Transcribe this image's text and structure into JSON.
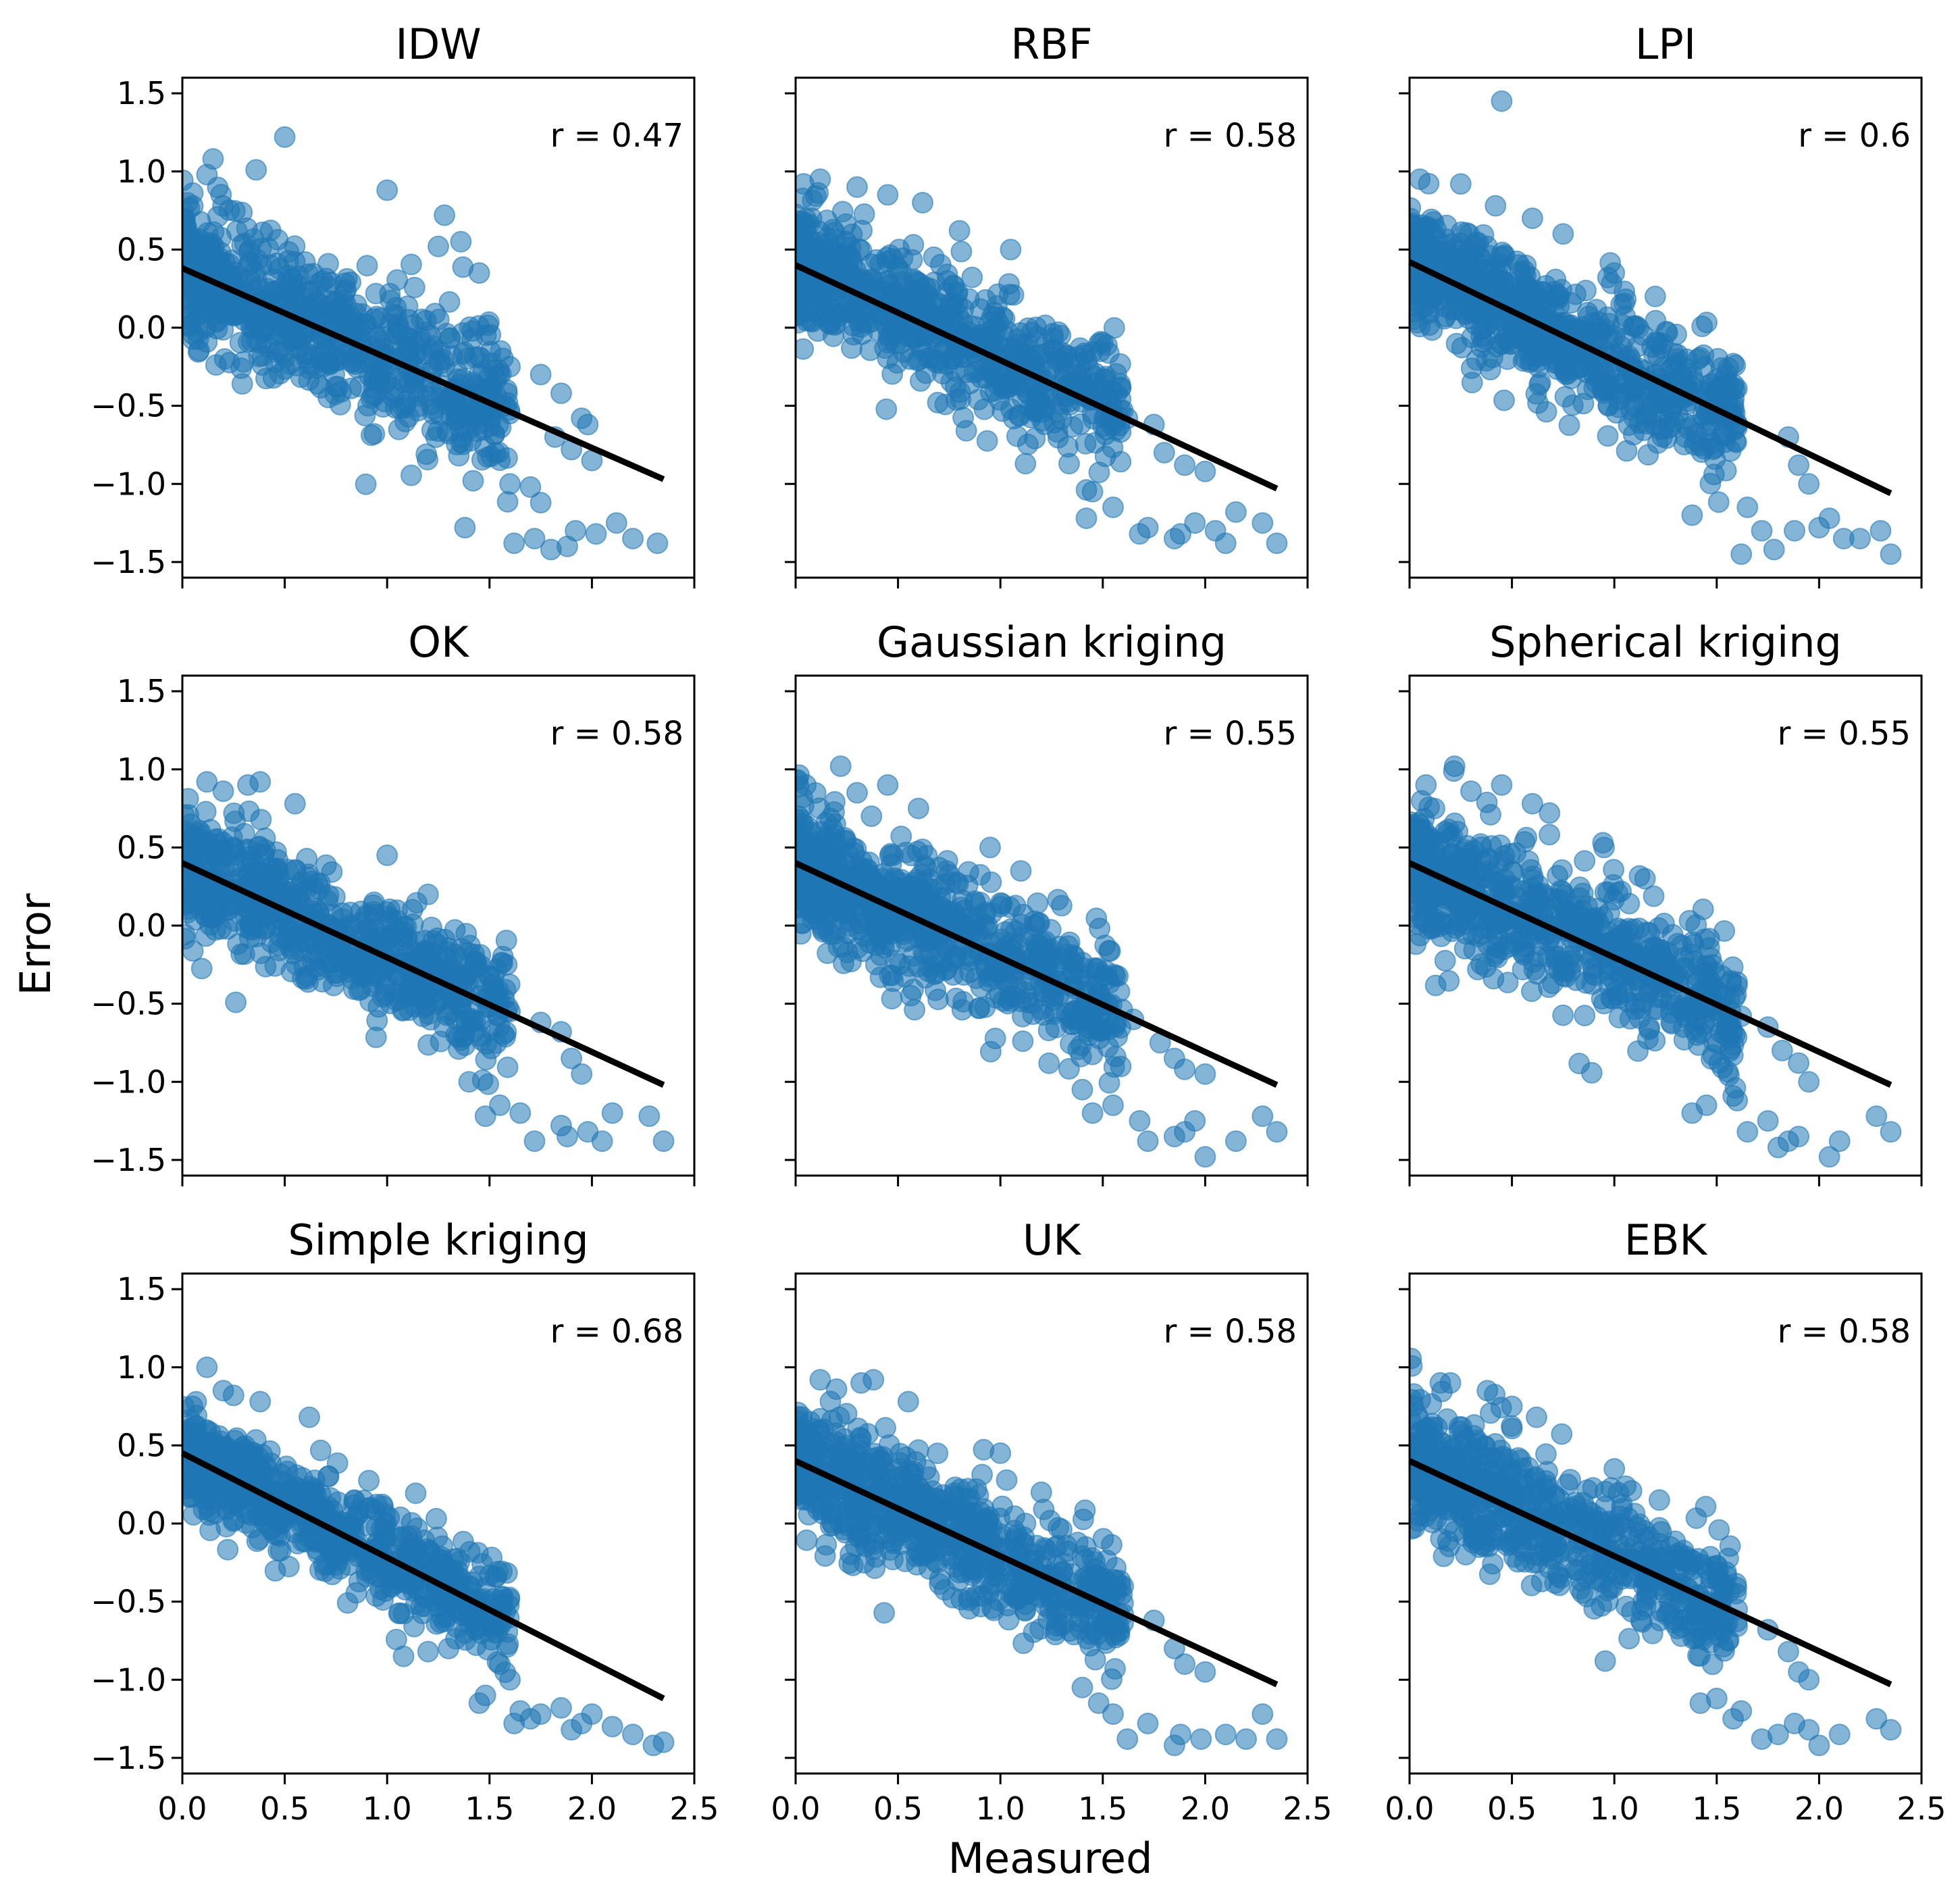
{
  "figure": {
    "xlabel": "Measured",
    "ylabel": "Error",
    "colors": {
      "points": "#1f77b4",
      "fit_line": "#000000",
      "frame": "#000000"
    },
    "xticks": [
      "0.0",
      "0.5",
      "1.0",
      "1.5",
      "2.0",
      "2.5"
    ],
    "yticks": [
      "1.5",
      "1.0",
      "0.5",
      "0.0",
      "−0.5",
      "−1.0",
      "−1.5"
    ]
  },
  "chart_data": [
    {
      "type": "scatter",
      "title": "IDW",
      "r_label": "r = 0.47",
      "xlim": [
        0,
        2.5
      ],
      "ylim": [
        -1.6,
        1.6
      ],
      "fit": {
        "x": [
          0,
          2.35
        ],
        "y": [
          0.38,
          -0.97
        ]
      },
      "n_points": 700,
      "spread": 0.23,
      "seed": 11,
      "outliers": [
        [
          0.5,
          1.22
        ],
        [
          0.15,
          1.08
        ],
        [
          0.36,
          1.01
        ],
        [
          0.12,
          0.98
        ],
        [
          1.0,
          0.88
        ],
        [
          1.28,
          0.72
        ],
        [
          1.36,
          0.55
        ],
        [
          1.25,
          0.52
        ],
        [
          1.45,
          0.35
        ],
        [
          1.6,
          -0.25
        ],
        [
          1.75,
          -0.3
        ],
        [
          1.85,
          -0.42
        ],
        [
          1.95,
          -0.58
        ],
        [
          1.98,
          -0.62
        ],
        [
          1.82,
          -0.7
        ],
        [
          1.9,
          -0.78
        ],
        [
          2.0,
          -0.85
        ],
        [
          1.35,
          -0.82
        ],
        [
          1.42,
          -0.98
        ],
        [
          1.6,
          -1.0
        ],
        [
          1.7,
          -1.02
        ],
        [
          1.75,
          -1.12
        ],
        [
          1.38,
          -1.28
        ],
        [
          1.62,
          -1.38
        ],
        [
          1.72,
          -1.35
        ],
        [
          1.8,
          -1.42
        ],
        [
          1.88,
          -1.4
        ],
        [
          1.92,
          -1.3
        ],
        [
          2.02,
          -1.32
        ],
        [
          2.12,
          -1.25
        ],
        [
          2.2,
          -1.35
        ],
        [
          2.32,
          -1.38
        ]
      ]
    },
    {
      "type": "scatter",
      "title": "RBF",
      "r_label": "r = 0.58",
      "xlim": [
        0,
        2.5
      ],
      "ylim": [
        -1.6,
        1.6
      ],
      "fit": {
        "x": [
          0,
          2.35
        ],
        "y": [
          0.4,
          -1.03
        ]
      },
      "n_points": 700,
      "spread": 0.2,
      "seed": 23,
      "outliers": [
        [
          0.12,
          0.95
        ],
        [
          0.3,
          0.9
        ],
        [
          0.45,
          0.85
        ],
        [
          0.62,
          0.8
        ],
        [
          0.8,
          0.62
        ],
        [
          1.05,
          0.5
        ],
        [
          1.45,
          -0.55
        ],
        [
          1.62,
          -0.58
        ],
        [
          1.75,
          -0.62
        ],
        [
          1.8,
          -0.8
        ],
        [
          1.9,
          -0.88
        ],
        [
          2.0,
          -0.92
        ],
        [
          1.45,
          -1.05
        ],
        [
          1.55,
          -1.15
        ],
        [
          1.42,
          -1.22
        ],
        [
          1.72,
          -1.28
        ],
        [
          1.68,
          -1.32
        ],
        [
          1.85,
          -1.35
        ],
        [
          1.88,
          -1.32
        ],
        [
          1.95,
          -1.25
        ],
        [
          2.05,
          -1.3
        ],
        [
          2.15,
          -1.18
        ],
        [
          2.28,
          -1.25
        ],
        [
          2.35,
          -1.38
        ],
        [
          2.1,
          -1.38
        ]
      ]
    },
    {
      "type": "scatter",
      "title": "LPI",
      "r_label": "r = 0.6",
      "xlim": [
        0,
        2.5
      ],
      "ylim": [
        -1.6,
        1.6
      ],
      "fit": {
        "x": [
          0,
          2.35
        ],
        "y": [
          0.42,
          -1.06
        ]
      },
      "n_points": 700,
      "spread": 0.2,
      "seed": 37,
      "outliers": [
        [
          0.45,
          1.45
        ],
        [
          0.05,
          0.95
        ],
        [
          0.25,
          0.92
        ],
        [
          0.42,
          0.78
        ],
        [
          0.6,
          0.7
        ],
        [
          0.75,
          0.6
        ],
        [
          1.0,
          0.35
        ],
        [
          1.2,
          0.2
        ],
        [
          1.45,
          -0.55
        ],
        [
          1.6,
          -0.62
        ],
        [
          1.85,
          -0.7
        ],
        [
          1.9,
          -0.88
        ],
        [
          1.95,
          -1.0
        ],
        [
          1.38,
          -1.2
        ],
        [
          1.65,
          -1.15
        ],
        [
          1.72,
          -1.3
        ],
        [
          1.78,
          -1.42
        ],
        [
          1.62,
          -1.45
        ],
        [
          1.88,
          -1.3
        ],
        [
          2.0,
          -1.28
        ],
        [
          2.05,
          -1.22
        ],
        [
          2.12,
          -1.35
        ],
        [
          2.2,
          -1.35
        ],
        [
          2.3,
          -1.3
        ],
        [
          2.35,
          -1.45
        ]
      ]
    },
    {
      "type": "scatter",
      "title": "OK",
      "r_label": "r = 0.58",
      "xlim": [
        0,
        2.5
      ],
      "ylim": [
        -1.6,
        1.6
      ],
      "fit": {
        "x": [
          0,
          2.35
        ],
        "y": [
          0.4,
          -1.02
        ]
      },
      "n_points": 700,
      "spread": 0.2,
      "seed": 41,
      "outliers": [
        [
          0.12,
          0.92
        ],
        [
          0.2,
          0.86
        ],
        [
          0.32,
          0.9
        ],
        [
          0.38,
          0.92
        ],
        [
          0.55,
          0.78
        ],
        [
          1.0,
          0.45
        ],
        [
          1.2,
          0.2
        ],
        [
          1.45,
          -0.45
        ],
        [
          1.6,
          -0.55
        ],
        [
          1.75,
          -0.62
        ],
        [
          1.85,
          -0.68
        ],
        [
          1.9,
          -0.85
        ],
        [
          1.95,
          -0.95
        ],
        [
          1.4,
          -1.0
        ],
        [
          1.48,
          -1.22
        ],
        [
          1.55,
          -1.15
        ],
        [
          1.65,
          -1.2
        ],
        [
          1.72,
          -1.38
        ],
        [
          1.85,
          -1.28
        ],
        [
          1.88,
          -1.35
        ],
        [
          1.98,
          -1.32
        ],
        [
          2.05,
          -1.38
        ],
        [
          2.1,
          -1.2
        ],
        [
          2.28,
          -1.22
        ],
        [
          2.35,
          -1.38
        ]
      ]
    },
    {
      "type": "scatter",
      "title": "Gaussian kriging",
      "r_label": "r = 0.55",
      "xlim": [
        0,
        2.5
      ],
      "ylim": [
        -1.6,
        1.6
      ],
      "fit": {
        "x": [
          0,
          2.35
        ],
        "y": [
          0.4,
          -1.02
        ]
      },
      "n_points": 700,
      "spread": 0.22,
      "seed": 53,
      "outliers": [
        [
          0.22,
          1.02
        ],
        [
          0.05,
          0.9
        ],
        [
          0.3,
          0.85
        ],
        [
          0.45,
          0.9
        ],
        [
          0.6,
          0.75
        ],
        [
          0.95,
          0.5
        ],
        [
          1.1,
          0.35
        ],
        [
          1.5,
          -0.5
        ],
        [
          1.65,
          -0.6
        ],
        [
          1.78,
          -0.75
        ],
        [
          1.85,
          -0.85
        ],
        [
          1.9,
          -0.92
        ],
        [
          2.0,
          -0.95
        ],
        [
          1.4,
          -1.05
        ],
        [
          1.45,
          -1.2
        ],
        [
          1.55,
          -1.15
        ],
        [
          1.68,
          -1.25
        ],
        [
          1.72,
          -1.38
        ],
        [
          1.85,
          -1.35
        ],
        [
          1.9,
          -1.32
        ],
        [
          1.95,
          -1.25
        ],
        [
          2.0,
          -1.48
        ],
        [
          2.15,
          -1.38
        ],
        [
          2.28,
          -1.22
        ],
        [
          2.35,
          -1.32
        ]
      ]
    },
    {
      "type": "scatter",
      "title": "Spherical kriging",
      "r_label": "r = 0.55",
      "xlim": [
        0,
        2.5
      ],
      "ylim": [
        -1.6,
        1.6
      ],
      "fit": {
        "x": [
          0,
          2.35
        ],
        "y": [
          0.4,
          -1.02
        ]
      },
      "n_points": 700,
      "spread": 0.22,
      "seed": 67,
      "outliers": [
        [
          0.22,
          1.02
        ],
        [
          0.08,
          0.9
        ],
        [
          0.3,
          0.86
        ],
        [
          0.45,
          0.9
        ],
        [
          0.6,
          0.78
        ],
        [
          0.95,
          0.5
        ],
        [
          1.15,
          0.3
        ],
        [
          1.5,
          -0.5
        ],
        [
          1.62,
          -0.58
        ],
        [
          1.75,
          -0.65
        ],
        [
          1.82,
          -0.8
        ],
        [
          1.9,
          -0.88
        ],
        [
          1.95,
          -1.0
        ],
        [
          1.38,
          -1.2
        ],
        [
          1.45,
          -1.15
        ],
        [
          1.6,
          -1.12
        ],
        [
          1.65,
          -1.32
        ],
        [
          1.75,
          -1.25
        ],
        [
          1.8,
          -1.42
        ],
        [
          1.85,
          -1.38
        ],
        [
          1.9,
          -1.35
        ],
        [
          2.05,
          -1.48
        ],
        [
          2.1,
          -1.38
        ],
        [
          2.28,
          -1.22
        ],
        [
          2.35,
          -1.32
        ]
      ]
    },
    {
      "type": "scatter",
      "title": "Simple kriging",
      "r_label": "r = 0.68",
      "xlim": [
        0,
        2.5
      ],
      "ylim": [
        -1.6,
        1.6
      ],
      "fit": {
        "x": [
          0,
          2.35
        ],
        "y": [
          0.45,
          -1.12
        ]
      },
      "n_points": 700,
      "spread": 0.16,
      "seed": 79,
      "outliers": [
        [
          0.12,
          1.0
        ],
        [
          0.05,
          0.75
        ],
        [
          0.2,
          0.85
        ],
        [
          0.25,
          0.82
        ],
        [
          0.38,
          0.78
        ],
        [
          0.62,
          0.68
        ],
        [
          1.08,
          -0.85
        ],
        [
          1.2,
          -0.82
        ],
        [
          1.3,
          -0.8
        ],
        [
          1.55,
          -0.9
        ],
        [
          1.6,
          -1.0
        ],
        [
          1.45,
          -1.15
        ],
        [
          1.48,
          -1.1
        ],
        [
          1.65,
          -1.2
        ],
        [
          1.62,
          -1.28
        ],
        [
          1.7,
          -1.25
        ],
        [
          1.75,
          -1.22
        ],
        [
          1.85,
          -1.18
        ],
        [
          1.9,
          -1.32
        ],
        [
          1.95,
          -1.28
        ],
        [
          2.0,
          -1.22
        ],
        [
          2.1,
          -1.3
        ],
        [
          2.2,
          -1.35
        ],
        [
          2.3,
          -1.42
        ],
        [
          2.35,
          -1.4
        ]
      ]
    },
    {
      "type": "scatter",
      "title": "UK",
      "r_label": "r = 0.58",
      "xlim": [
        0,
        2.5
      ],
      "ylim": [
        -1.6,
        1.6
      ],
      "fit": {
        "x": [
          0,
          2.35
        ],
        "y": [
          0.4,
          -1.03
        ]
      },
      "n_points": 700,
      "spread": 0.2,
      "seed": 83,
      "outliers": [
        [
          0.12,
          0.92
        ],
        [
          0.2,
          0.86
        ],
        [
          0.32,
          0.9
        ],
        [
          0.38,
          0.92
        ],
        [
          0.55,
          0.78
        ],
        [
          1.0,
          0.45
        ],
        [
          1.2,
          0.2
        ],
        [
          1.45,
          -0.5
        ],
        [
          1.6,
          -0.58
        ],
        [
          1.75,
          -0.62
        ],
        [
          1.85,
          -0.8
        ],
        [
          1.9,
          -0.9
        ],
        [
          2.0,
          -0.95
        ],
        [
          1.4,
          -1.05
        ],
        [
          1.48,
          -1.15
        ],
        [
          1.55,
          -1.22
        ],
        [
          1.62,
          -1.38
        ],
        [
          1.72,
          -1.28
        ],
        [
          1.85,
          -1.42
        ],
        [
          1.88,
          -1.35
        ],
        [
          1.98,
          -1.38
        ],
        [
          2.1,
          -1.35
        ],
        [
          2.2,
          -1.38
        ],
        [
          2.28,
          -1.22
        ],
        [
          2.35,
          -1.38
        ]
      ]
    },
    {
      "type": "scatter",
      "title": "EBK",
      "r_label": "r = 0.58",
      "xlim": [
        0,
        2.5
      ],
      "ylim": [
        -1.6,
        1.6
      ],
      "fit": {
        "x": [
          0,
          2.35
        ],
        "y": [
          0.4,
          -1.03
        ]
      },
      "n_points": 700,
      "spread": 0.2,
      "seed": 97,
      "outliers": [
        [
          0.15,
          0.9
        ],
        [
          0.2,
          0.9
        ],
        [
          0.38,
          0.85
        ],
        [
          0.5,
          0.75
        ],
        [
          0.62,
          0.68
        ],
        [
          1.0,
          0.35
        ],
        [
          1.22,
          0.15
        ],
        [
          1.45,
          -0.5
        ],
        [
          1.6,
          -0.55
        ],
        [
          1.75,
          -0.68
        ],
        [
          1.85,
          -0.82
        ],
        [
          1.9,
          -0.95
        ],
        [
          1.95,
          -1.0
        ],
        [
          1.42,
          -1.15
        ],
        [
          1.5,
          -1.12
        ],
        [
          1.58,
          -1.25
        ],
        [
          1.62,
          -1.2
        ],
        [
          1.72,
          -1.38
        ],
        [
          1.8,
          -1.35
        ],
        [
          1.88,
          -1.28
        ],
        [
          1.95,
          -1.32
        ],
        [
          2.0,
          -1.42
        ],
        [
          2.1,
          -1.35
        ],
        [
          2.28,
          -1.25
        ],
        [
          2.35,
          -1.32
        ]
      ]
    }
  ]
}
